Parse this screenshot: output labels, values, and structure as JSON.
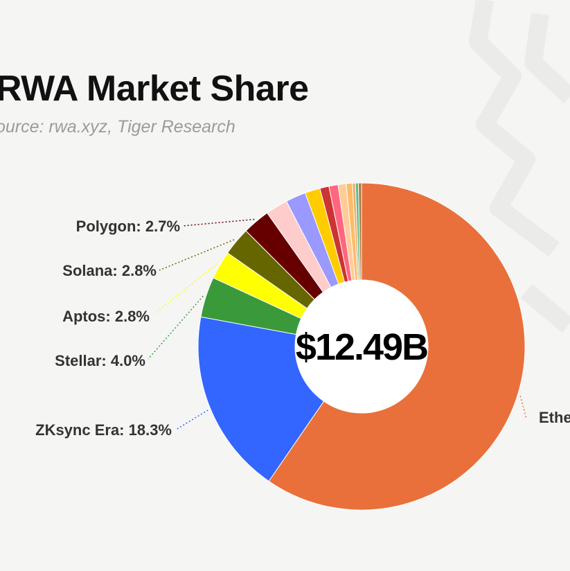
{
  "header": {
    "title": "RWA Market Share",
    "source": "ource: rwa.xyz, Tiger Research"
  },
  "chart_data": {
    "type": "pie",
    "variant": "donut",
    "center_label": "$12.49B",
    "start_angle_deg": 0,
    "slices": [
      {
        "label": "Ethe",
        "value": 59.6,
        "color": "#e9703a"
      },
      {
        "label": "ZKsync Era: 18.3%",
        "value": 18.3,
        "color": "#3366ff"
      },
      {
        "label": "Stellar: 4.0%",
        "value": 4.0,
        "color": "#3a9a3a"
      },
      {
        "label": "Aptos: 2.8%",
        "value": 2.8,
        "color": "#ffff00"
      },
      {
        "label": "Solana: 2.8%",
        "value": 2.8,
        "color": "#666600"
      },
      {
        "label": "Polygon: 2.7%",
        "value": 2.7,
        "color": "#660000"
      },
      {
        "label": "",
        "value": 2.2,
        "color": "#ffcccc"
      },
      {
        "label": "",
        "value": 2.0,
        "color": "#9999ff"
      },
      {
        "label": "",
        "value": 1.5,
        "color": "#ffcc00"
      },
      {
        "label": "",
        "value": 0.9,
        "color": "#cc3333"
      },
      {
        "label": "",
        "value": 0.9,
        "color": "#ff6680"
      },
      {
        "label": "",
        "value": 0.8,
        "color": "#ffcc99"
      },
      {
        "label": "",
        "value": 0.6,
        "color": "#ffbb66"
      },
      {
        "label": "",
        "value": 0.3,
        "color": "#e8b070"
      },
      {
        "label": "",
        "value": 0.3,
        "color": "#66bb88"
      },
      {
        "label": "",
        "value": 0.3,
        "color": "#aa7744"
      }
    ]
  }
}
